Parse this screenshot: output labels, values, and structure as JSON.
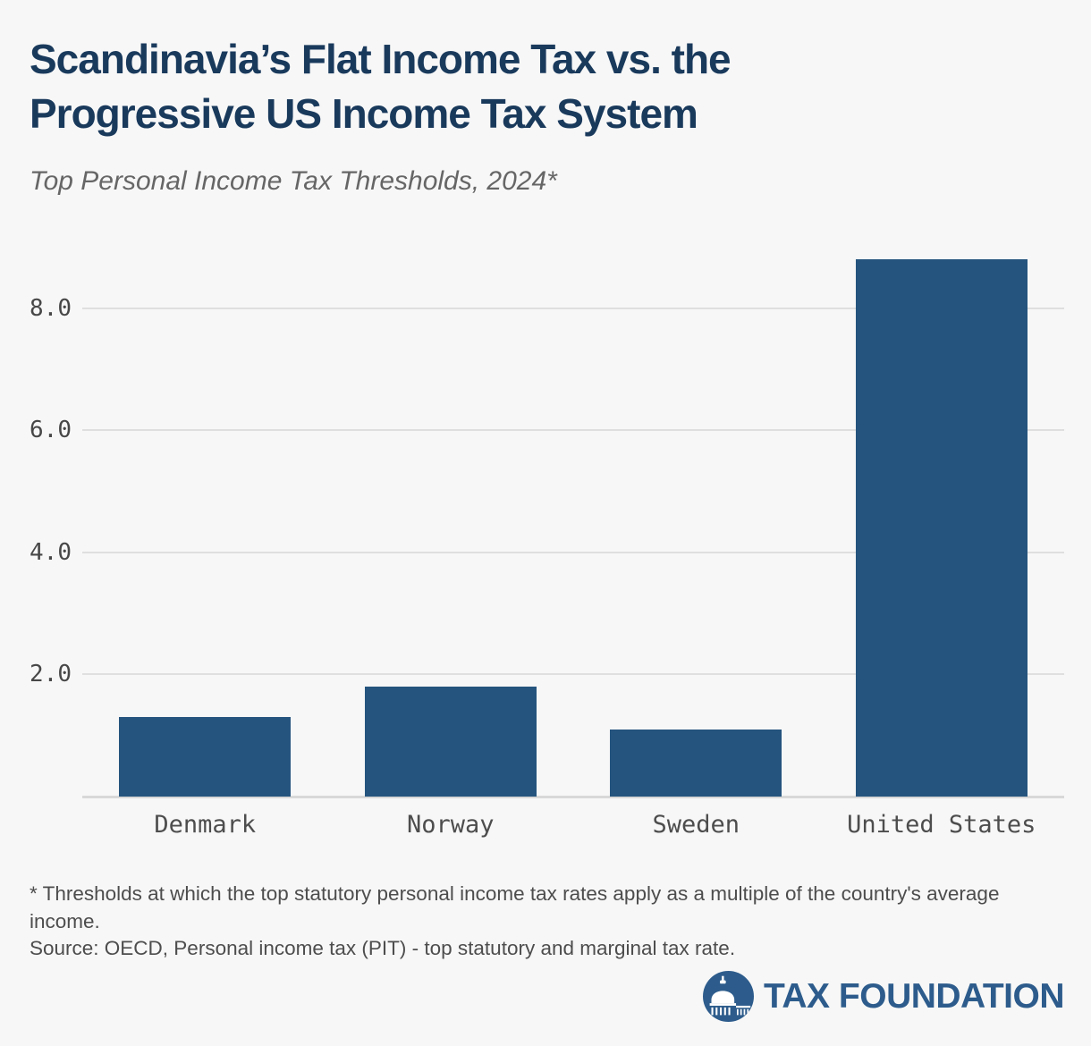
{
  "header": {
    "title_lines": [
      "Scandinavia’s Flat Income Tax vs. the",
      "Progressive US Income Tax System"
    ],
    "subtitle": "Top Personal Income Tax Thresholds, 2024*"
  },
  "chart_data": {
    "type": "bar",
    "categories": [
      "Denmark",
      "Norway",
      "Sweden",
      "United States"
    ],
    "values": [
      1.3,
      1.8,
      1.1,
      8.8
    ],
    "title": "Scandinavia’s Flat Income Tax vs. the Progressive US Income Tax System",
    "subtitle": "Top Personal Income Tax Thresholds, 2024*",
    "xlabel": "",
    "ylabel": "",
    "ylim": [
      0,
      9.2
    ],
    "yticks": [
      2.0,
      4.0,
      6.0,
      8.0
    ],
    "ytick_labels": [
      "2.0",
      "4.0",
      "6.0",
      "8.0"
    ],
    "grid": true,
    "legend": false,
    "bar_color": "#25547e"
  },
  "footnote": {
    "note": "* Thresholds at which the top statutory personal income tax rates apply as a multiple of the country's average income.",
    "source": "Source: OECD, Personal income tax (PIT) - top statutory and marginal tax rate."
  },
  "logo": {
    "text": "TAX FOUNDATION",
    "icon": "capitol-dome-icon"
  },
  "colors": {
    "background": "#f7f7f7",
    "bar": "#25547e",
    "title": "#1a3a5c",
    "subtitle": "#666666",
    "axis_text": "#4d4d4d",
    "gridline": "#dfdfdf",
    "baseline": "#d8d8d8",
    "logo_blue": "#2d5c8c"
  }
}
